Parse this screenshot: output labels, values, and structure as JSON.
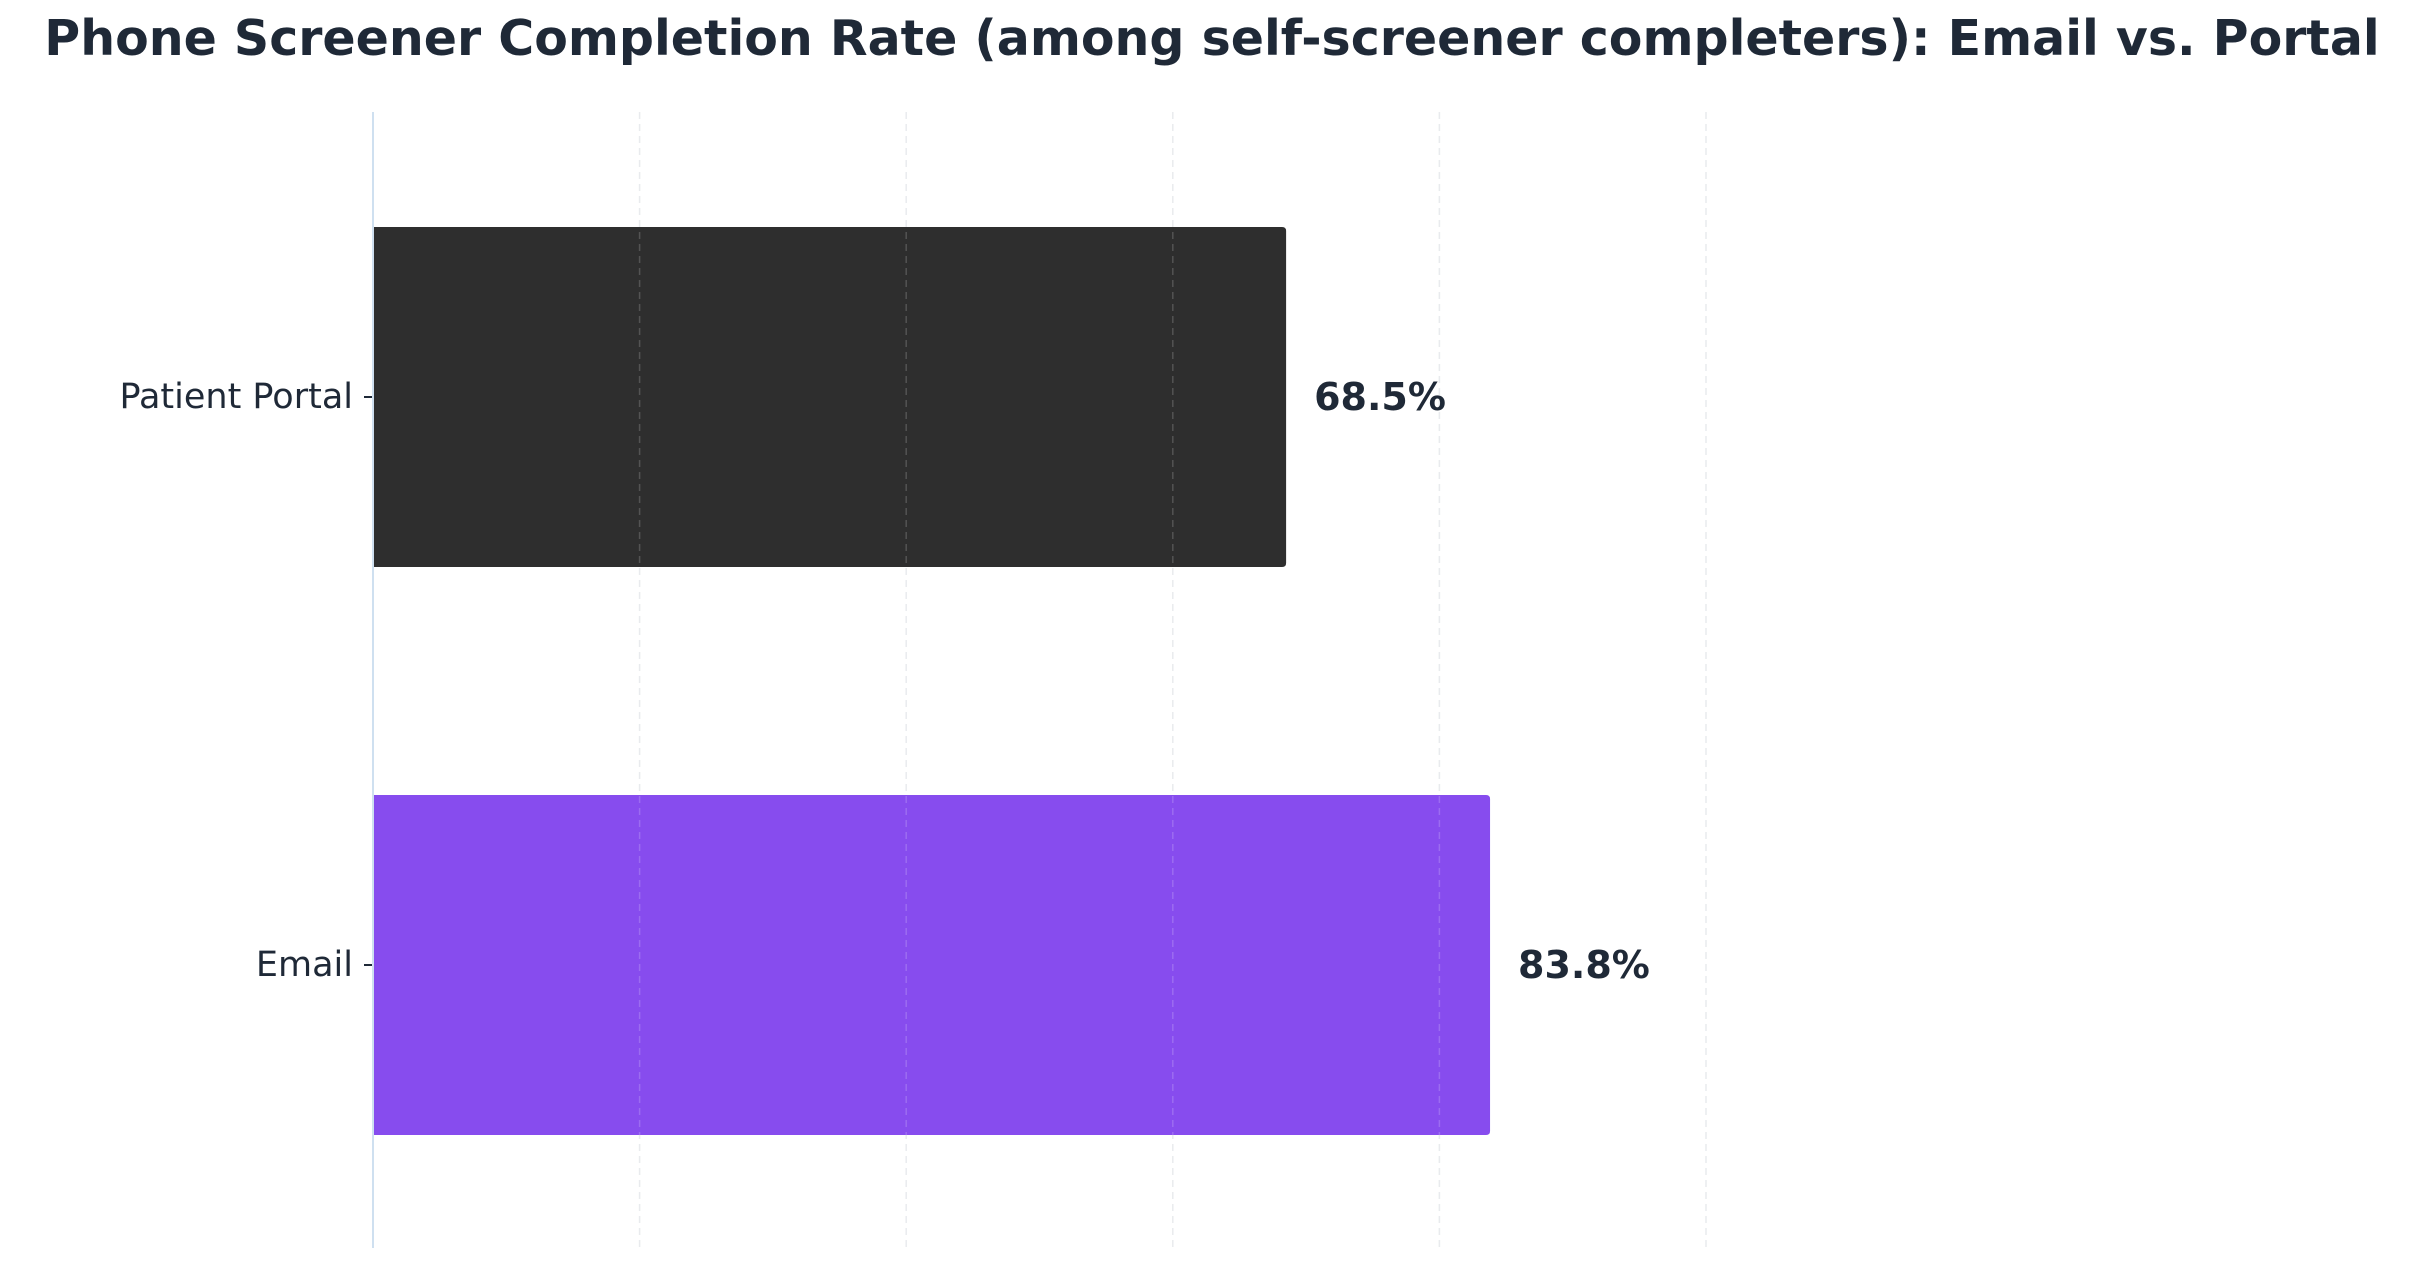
{
  "chart_data": {
    "type": "bar",
    "orientation": "horizontal",
    "title": "Phone Screener Completion Rate (among self-screener completers): Email vs. Portal",
    "xlabel": "",
    "ylabel": "",
    "xlim": [
      0,
      100
    ],
    "grid": true,
    "categories": [
      "Patient Portal",
      "Email"
    ],
    "values": [
      68.5,
      83.8
    ],
    "value_labels": [
      "68.5%",
      "83.8%"
    ],
    "colors": [
      "#2e2e2e",
      "#874cee"
    ]
  }
}
